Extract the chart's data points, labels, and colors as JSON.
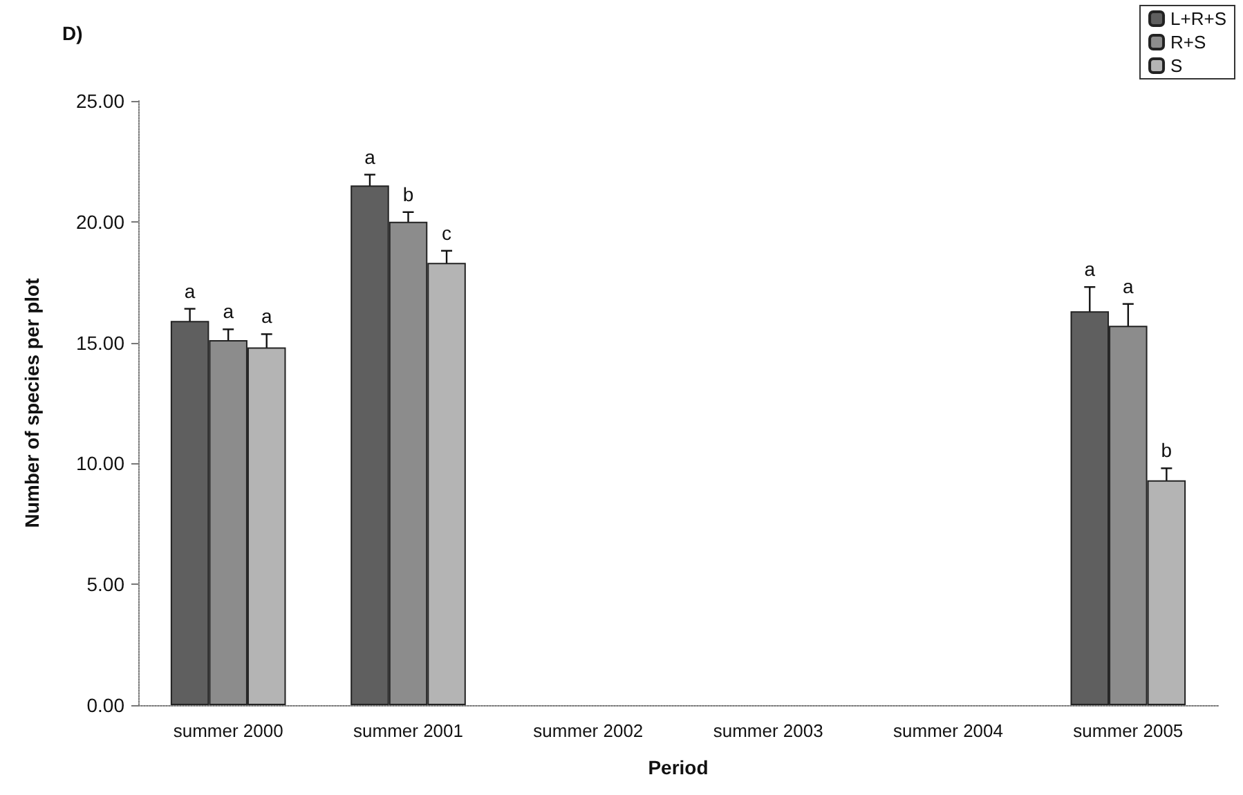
{
  "chart_data": {
    "type": "bar",
    "title": "D)",
    "xlabel": "Period",
    "ylabel": "Number of species per plot",
    "categories": [
      "summer 2000",
      "summer 2001",
      "summer 2002",
      "summer 2003",
      "summer 2004",
      "summer 2005"
    ],
    "series": [
      {
        "name": "L+R+S",
        "color": "#5f5f5f",
        "values": [
          15.9,
          21.5,
          null,
          null,
          null,
          16.3
        ],
        "errors": [
          0.5,
          0.45,
          null,
          null,
          null,
          1.0
        ],
        "value_labels": [
          "a",
          "a",
          null,
          null,
          null,
          "a"
        ]
      },
      {
        "name": "R+S",
        "color": "#8c8c8c",
        "values": [
          15.1,
          20.0,
          null,
          null,
          null,
          15.7
        ],
        "errors": [
          0.45,
          0.4,
          null,
          null,
          null,
          0.9
        ],
        "value_labels": [
          "a",
          "b",
          null,
          null,
          null,
          "a"
        ]
      },
      {
        "name": "S",
        "color": "#b4b4b4",
        "values": [
          14.8,
          18.3,
          null,
          null,
          null,
          9.3
        ],
        "errors": [
          0.55,
          0.5,
          null,
          null,
          null,
          0.5
        ],
        "value_labels": [
          "a",
          "c",
          null,
          null,
          null,
          "b"
        ]
      }
    ],
    "ylim": [
      0,
      25
    ],
    "yticks": [
      {
        "value": 0,
        "label": "0.00"
      },
      {
        "value": 5,
        "label": "5.00"
      },
      {
        "value": 10,
        "label": "10.00"
      },
      {
        "value": 15,
        "label": "15.00"
      },
      {
        "value": 20,
        "label": "20.00"
      },
      {
        "value": 25,
        "label": "25.00"
      }
    ],
    "grid": false,
    "legend": "top right"
  }
}
